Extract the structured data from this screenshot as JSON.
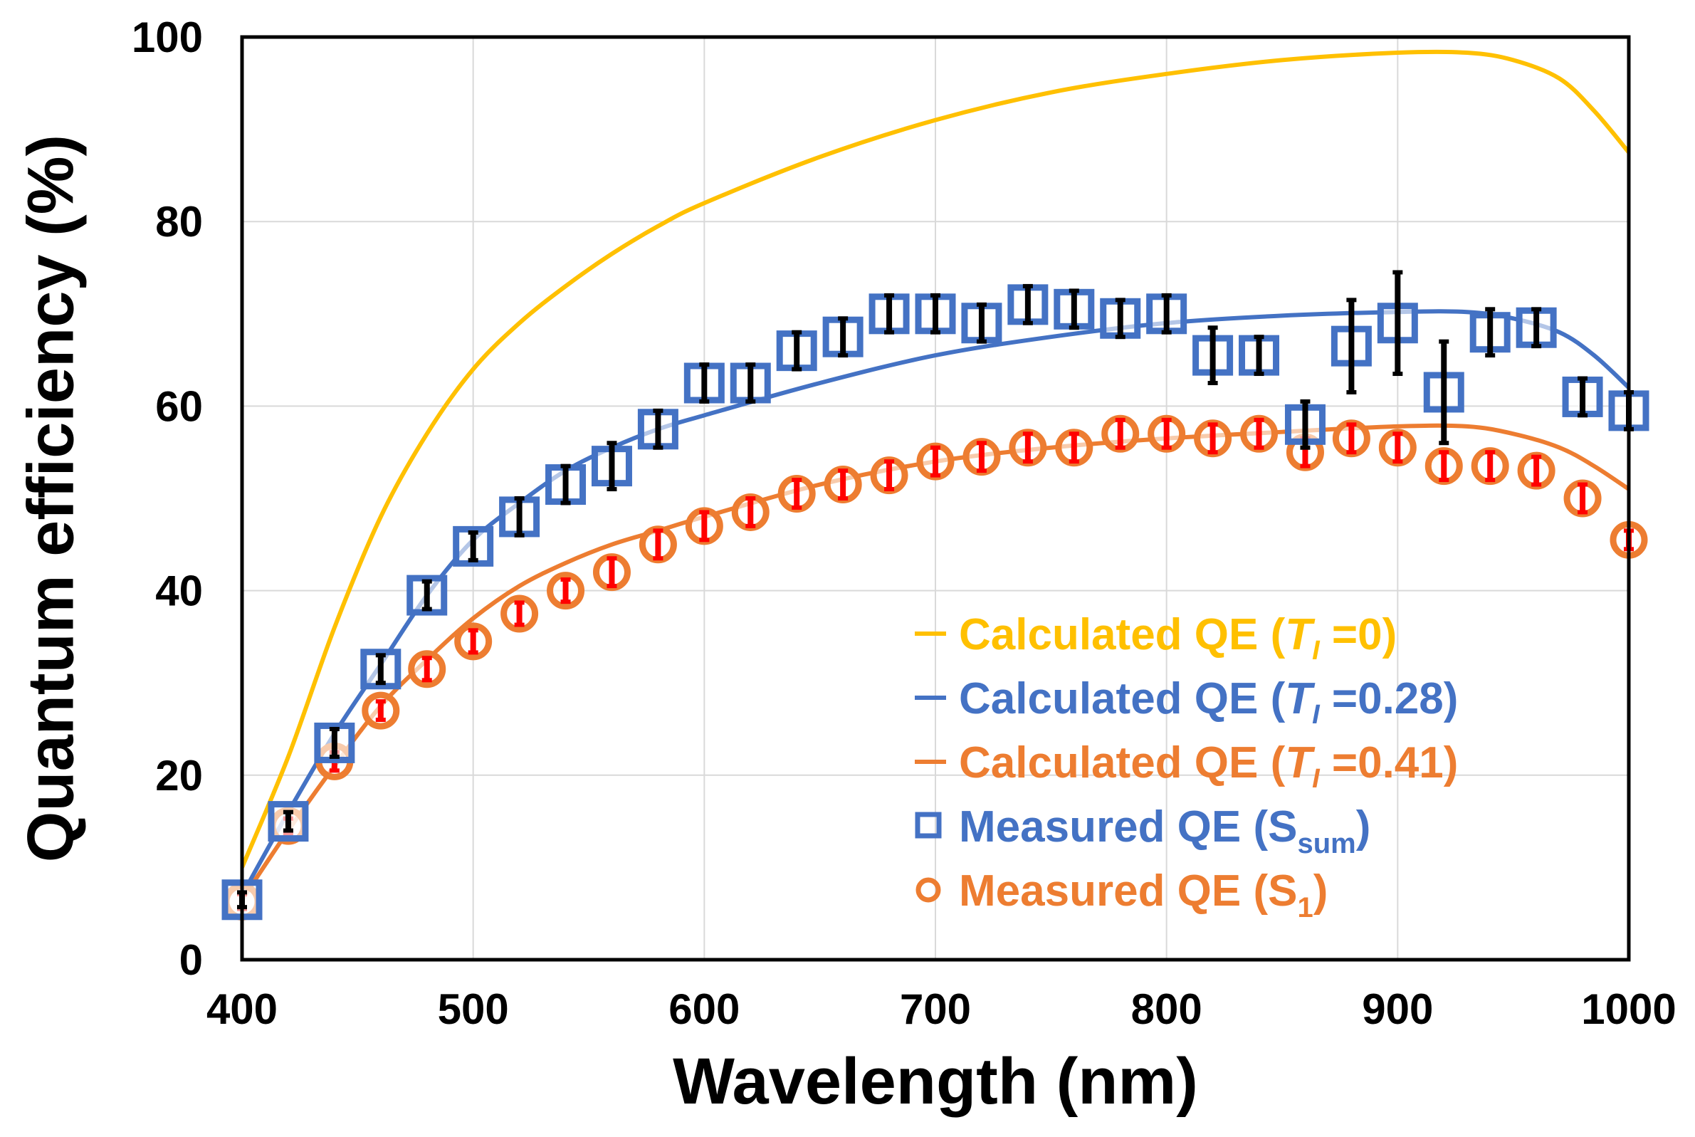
{
  "chart_data": {
    "type": "line",
    "title": "",
    "xlabel": "Wavelength (nm)",
    "ylabel": "Quantum efficiency (%)",
    "xlim": [
      400,
      1000
    ],
    "ylim": [
      0,
      100
    ],
    "xticks": [
      400,
      500,
      600,
      700,
      800,
      900,
      1000
    ],
    "yticks": [
      0,
      20,
      40,
      60,
      80,
      100
    ],
    "grid": true,
    "legend_position": "bottom-right",
    "colors": {
      "calc_t0": "#FFC000",
      "calc_t028": "#4472C4",
      "calc_t041": "#ED7D31",
      "measured_sum": "#4472C4",
      "measured_s1": "#ED7D31",
      "measured_s1_inner": "#FF0000",
      "error_bar": "#000000"
    },
    "series": [
      {
        "name": "Calculated QE (T_I =0)",
        "kind": "line",
        "color": "#FFC000",
        "x": [
          400,
          420,
          440,
          460,
          480,
          500,
          520,
          540,
          560,
          580,
          600,
          650,
          700,
          750,
          800,
          850,
          900,
          930,
          950,
          970,
          985,
          1000
        ],
        "y": [
          10,
          22,
          36,
          48,
          57,
          64,
          69,
          73,
          76.5,
          79.5,
          82,
          87,
          91,
          94,
          96,
          97.5,
          98.3,
          98.3,
          97.5,
          95.5,
          92,
          87.5
        ]
      },
      {
        "name": "Calculated QE (T_I =0.28)",
        "kind": "line",
        "color": "#4472C4",
        "x": [
          400,
          420,
          440,
          460,
          480,
          500,
          520,
          540,
          560,
          580,
          600,
          650,
          700,
          750,
          800,
          850,
          900,
          930,
          950,
          970,
          985,
          1000
        ],
        "y": [
          7,
          16,
          24.5,
          32,
          39.5,
          45.5,
          49.5,
          53,
          55.5,
          57.5,
          59,
          62.5,
          65.5,
          67.5,
          69,
          69.8,
          70.2,
          70.2,
          69.5,
          68,
          65.5,
          62
        ]
      },
      {
        "name": "Calculated QE (T_I =0.41)",
        "kind": "line",
        "color": "#ED7D31",
        "x": [
          400,
          420,
          440,
          460,
          480,
          500,
          520,
          540,
          560,
          580,
          600,
          650,
          700,
          750,
          800,
          850,
          900,
          930,
          950,
          970,
          985,
          1000
        ],
        "y": [
          6.5,
          14,
          21,
          27.5,
          32.5,
          37,
          40.5,
          43,
          45,
          46.5,
          48,
          51.5,
          54,
          55.5,
          56.5,
          57.2,
          57.8,
          57.8,
          57,
          55.5,
          53.5,
          51
        ]
      },
      {
        "name": "Measured QE (S_sum)",
        "kind": "scatter",
        "marker": "square",
        "color": "#4472C4",
        "x": [
          400,
          420,
          440,
          460,
          480,
          500,
          520,
          540,
          560,
          580,
          600,
          620,
          640,
          660,
          680,
          700,
          720,
          740,
          760,
          780,
          800,
          820,
          840,
          860,
          880,
          900,
          920,
          940,
          960,
          980,
          1000
        ],
        "y": [
          6.5,
          15,
          23.5,
          31.5,
          39.5,
          44.8,
          48,
          51.5,
          53.5,
          57.5,
          62.5,
          62.5,
          66,
          67.5,
          70,
          70,
          69,
          71,
          70.5,
          69.5,
          70,
          65.5,
          65.5,
          58,
          66.5,
          69,
          61.5,
          68,
          68.5,
          61,
          59.5
        ],
        "err": [
          0.8,
          1.0,
          1.5,
          1.5,
          1.5,
          1.5,
          2.0,
          2.0,
          2.5,
          2.0,
          2.0,
          2.0,
          2.0,
          2.0,
          2.0,
          2.0,
          2.0,
          2.0,
          2.0,
          2.0,
          2.0,
          3.0,
          2.0,
          2.5,
          5.0,
          5.5,
          5.5,
          2.5,
          2.0,
          2.0,
          2.0
        ]
      },
      {
        "name": "Measured QE (S_1)",
        "kind": "scatter",
        "marker": "circle",
        "color": "#ED7D31",
        "x": [
          400,
          420,
          440,
          460,
          480,
          500,
          520,
          540,
          560,
          580,
          600,
          620,
          640,
          660,
          680,
          700,
          720,
          740,
          760,
          780,
          800,
          820,
          840,
          860,
          880,
          900,
          920,
          940,
          960,
          980,
          1000
        ],
        "y": [
          6.3,
          14.5,
          21.5,
          27,
          31.5,
          34.5,
          37.5,
          40,
          42,
          45,
          47,
          48.5,
          50.5,
          51.5,
          52.5,
          54,
          54.5,
          55.5,
          55.5,
          57,
          57,
          56.5,
          57,
          55,
          56.5,
          55.5,
          53.5,
          53.5,
          53,
          50,
          45.5
        ],
        "err": [
          0.8,
          0.8,
          1.0,
          1.0,
          1.2,
          1.2,
          1.2,
          1.2,
          1.5,
          1.5,
          1.5,
          1.5,
          1.5,
          1.5,
          1.5,
          1.5,
          1.5,
          1.5,
          1.5,
          1.5,
          1.5,
          1.5,
          1.5,
          1.5,
          1.5,
          1.5,
          1.5,
          1.5,
          1.5,
          1.5,
          1.0
        ]
      }
    ],
    "legend": [
      {
        "key": "calc_t0",
        "type": "line",
        "color": "#FFC000",
        "text": "Calculated QE (",
        "italic": "T",
        "italic_sub": "I",
        "tail": " =0)"
      },
      {
        "key": "calc_t028",
        "type": "line",
        "color": "#4472C4",
        "text": "Calculated QE (",
        "italic": "T",
        "italic_sub": "I",
        "tail": " =0.28)"
      },
      {
        "key": "calc_t041",
        "type": "line",
        "color": "#ED7D31",
        "text": "Calculated QE (",
        "italic": "T",
        "italic_sub": "I",
        "tail": " =0.41)"
      },
      {
        "key": "measured_sum",
        "type": "square",
        "color": "#4472C4",
        "text": "Measured QE (S",
        "sub": "sum",
        "tail": ")"
      },
      {
        "key": "measured_s1",
        "type": "circle",
        "color": "#ED7D31",
        "text": "Measured QE (S",
        "sub": "1",
        "tail": ")"
      }
    ]
  }
}
